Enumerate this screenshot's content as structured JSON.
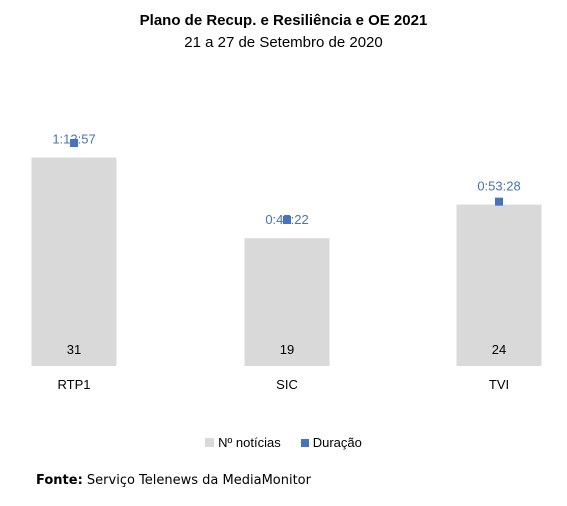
{
  "chart_data": {
    "type": "bar",
    "title": "Plano de Recup. e Resiliência e OE 2021",
    "subtitle": "21 a 27 de Setembro de 2020",
    "categories": [
      "RTP1",
      "SIC",
      "TVI"
    ],
    "series": [
      {
        "name": "Nº notícias",
        "type": "bar",
        "values": [
          31,
          19,
          24
        ],
        "color": "#d9d9d9"
      },
      {
        "name": "Duração",
        "type": "scatter",
        "values": [
          "1:12:57",
          "0:47:22",
          "0:53:28"
        ],
        "seconds": [
          4377,
          2842,
          3208
        ],
        "color": "#4472c4"
      }
    ],
    "ylim": [
      0,
      40
    ],
    "legend": "bottom",
    "grid": false
  },
  "source": {
    "label": "Fonte",
    "text": "Serviço Telenews da MediaMonitor"
  }
}
